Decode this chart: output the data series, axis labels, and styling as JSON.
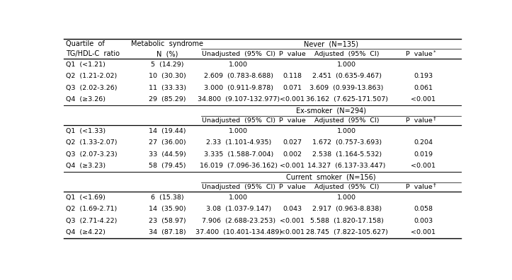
{
  "col_headers_left": [
    "Quartile of\nTG/HDL-C  ratio",
    "Metabolic  syndrome\nN  (%)"
  ],
  "group_headers": [
    "Never  (N=135)",
    "Ex-smoker  (N=294)",
    "Current  smoker  (N=156)"
  ],
  "sub_headers": [
    "Unadjusted  (95%  CI)",
    "P  value",
    "Adjusted  (95%  CI)",
    "P  value"
  ],
  "pvalue_superscripts": [
    "*",
    "†",
    "†"
  ],
  "sections": [
    {
      "rows": [
        [
          "Q1  (<1.21)",
          "5  (14.29)",
          "1.000",
          "",
          "1.000",
          ""
        ],
        [
          "Q2  (1.21-2.02)",
          "10  (30.30)",
          "2.609  (0.783-8.688)",
          "0.118",
          "2.451  (0.635-9.467)",
          "0.193"
        ],
        [
          "Q3  (2.02-3.26)",
          "11  (33.33)",
          "3.000  (0.911-9.878)",
          "0.071",
          "3.609  (0.939-13.863)",
          "0.061"
        ],
        [
          "Q4  (≥3.26)",
          "29  (85.29)",
          "34.800  (9.107-132.977)",
          "<0.001",
          "36.162  (7.625-171.507)",
          "<0.001"
        ]
      ]
    },
    {
      "rows": [
        [
          "Q1  (<1.33)",
          "14  (19.44)",
          "1.000",
          "",
          "1.000",
          ""
        ],
        [
          "Q2  (1.33-2.07)",
          "27  (36.00)",
          "2.33  (1.101-4.935)",
          "0.027",
          "1.672  (0.757-3.693)",
          "0.204"
        ],
        [
          "Q3  (2.07-3.23)",
          "33  (44.59)",
          "3.335  (1.588-7.004)",
          "0.002",
          "2.538  (1.164-5.532)",
          "0.019"
        ],
        [
          "Q4  (≥3.23)",
          "58  (79.45)",
          "16.019  (7.096-36.162)",
          "<0.001",
          "14.327  (6.137-33.447)",
          "<0.001"
        ]
      ]
    },
    {
      "rows": [
        [
          "Q1  (<1.69)",
          "6  (15.38)",
          "1.000",
          "",
          "1.000",
          ""
        ],
        [
          "Q2  (1.69-2.71)",
          "14  (35.90)",
          "3.08  (1.037-9.147)",
          "0.043",
          "2.917  (0.963-8.838)",
          "0.058"
        ],
        [
          "Q3  (2.71-4.22)",
          "23  (58.97)",
          "7.906  (2.688-23.253)",
          "<0.001",
          "5.588  (1.820-17.158)",
          "0.003"
        ],
        [
          "Q4  (≥4.22)",
          "34  (87.18)",
          "37.400  (10.401-134.489)",
          "<0.001",
          "28.745  (7.822-105.627)",
          "<0.001"
        ]
      ]
    }
  ],
  "font_size": 6.8,
  "header_font_size": 7.0,
  "bg_color": "white",
  "line_color": "black"
}
